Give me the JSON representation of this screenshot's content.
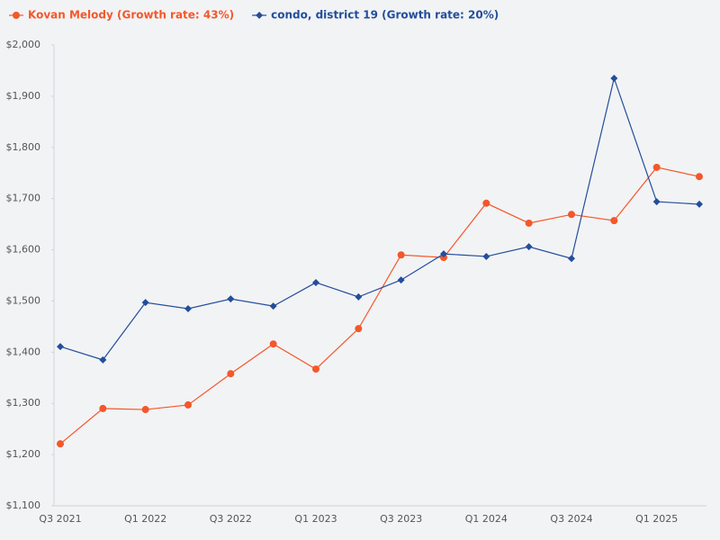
{
  "chart_data": {
    "type": "line",
    "categories": [
      "Q3 2021",
      null,
      "Q1 2022",
      null,
      "Q3 2022",
      null,
      "Q1 2023",
      null,
      "Q3 2023",
      null,
      "Q1 2024",
      null,
      "Q3 2024",
      null,
      "Q1 2025",
      null
    ],
    "series": [
      {
        "name": "Kovan Melody (Growth rate: 43%)",
        "color": "#f4572a",
        "marker": "circle",
        "values": [
          1221,
          1290,
          1288,
          1297,
          1358,
          1416,
          1367,
          1446,
          1590,
          1585,
          1691,
          1652,
          1669,
          1657,
          1761,
          1743
        ]
      },
      {
        "name": "condo, district 19 (Growth rate: 20%)",
        "color": "#234e9b",
        "marker": "diamond",
        "values": [
          1411,
          1385,
          1497,
          1485,
          1504,
          1490,
          1536,
          1508,
          1541,
          1592,
          1587,
          1606,
          1583,
          1935,
          1694,
          1689
        ]
      }
    ],
    "ylim": [
      1100,
      2000
    ],
    "yticks": [
      {
        "value": 1100,
        "label": "$1,100"
      },
      {
        "value": 1200,
        "label": "$1,200"
      },
      {
        "value": 1300,
        "label": "$1,300"
      },
      {
        "value": 1400,
        "label": "$1,400"
      },
      {
        "value": 1500,
        "label": "$1,500"
      },
      {
        "value": 1600,
        "label": "$1,600"
      },
      {
        "value": 1700,
        "label": "$1,700"
      },
      {
        "value": 1800,
        "label": "$1,800"
      },
      {
        "value": 1900,
        "label": "$1,900"
      },
      {
        "value": 2000,
        "label": "$2,000"
      }
    ],
    "grid": false,
    "legend": "top-left"
  }
}
